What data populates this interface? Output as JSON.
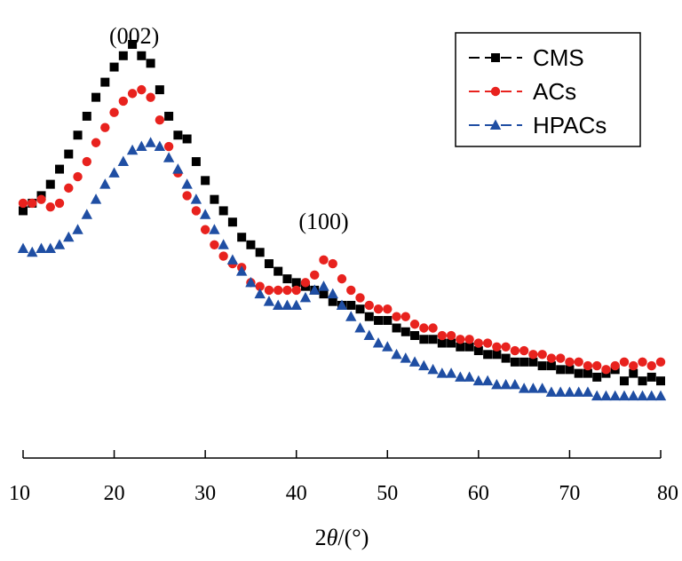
{
  "chart_data": {
    "type": "scatter",
    "xlabel_prefix": "2",
    "xlabel_theta": "θ",
    "xlabel_suffix": "/(°)",
    "xlim": [
      10,
      80
    ],
    "xticks": [
      "10",
      "20",
      "30",
      "40",
      "50",
      "60",
      "70",
      "80"
    ],
    "ylabel": "",
    "annotations": [
      {
        "text": "(002)",
        "x": 22.2,
        "yfrac": 0.96
      },
      {
        "text": "(100)",
        "x": 43.0,
        "yfrac": 0.47
      }
    ],
    "legend_position": "top-right",
    "series": [
      {
        "name": "CMS",
        "color": "#000000",
        "marker": "square",
        "x": [
          10,
          11,
          12,
          13,
          14,
          15,
          16,
          17,
          18,
          19,
          20,
          21,
          22,
          23,
          24,
          25,
          26,
          27,
          28,
          29,
          30,
          31,
          32,
          33,
          34,
          35,
          36,
          37,
          38,
          39,
          40,
          41,
          42,
          43,
          44,
          45,
          46,
          47,
          48,
          49,
          50,
          51,
          52,
          53,
          54,
          55,
          56,
          57,
          58,
          59,
          60,
          61,
          62,
          63,
          64,
          65,
          66,
          67,
          68,
          69,
          70,
          71,
          72,
          73,
          74,
          75,
          76,
          77,
          78,
          79,
          80
        ],
        "y": [
          0.56,
          0.58,
          0.6,
          0.63,
          0.67,
          0.71,
          0.76,
          0.81,
          0.86,
          0.9,
          0.94,
          0.97,
          1.0,
          0.97,
          0.95,
          0.88,
          0.81,
          0.76,
          0.75,
          0.69,
          0.64,
          0.59,
          0.56,
          0.53,
          0.49,
          0.47,
          0.45,
          0.42,
          0.4,
          0.38,
          0.37,
          0.36,
          0.35,
          0.34,
          0.32,
          0.31,
          0.31,
          0.3,
          0.28,
          0.27,
          0.27,
          0.25,
          0.24,
          0.23,
          0.22,
          0.22,
          0.21,
          0.21,
          0.2,
          0.2,
          0.19,
          0.18,
          0.18,
          0.17,
          0.16,
          0.16,
          0.16,
          0.15,
          0.15,
          0.14,
          0.14,
          0.13,
          0.13,
          0.12,
          0.13,
          0.14,
          0.11,
          0.13,
          0.11,
          0.12,
          0.11
        ]
      },
      {
        "name": "ACs",
        "color": "#e8221e",
        "marker": "circle",
        "x": [
          10,
          11,
          12,
          13,
          14,
          15,
          16,
          17,
          18,
          19,
          20,
          21,
          22,
          23,
          24,
          25,
          26,
          27,
          28,
          29,
          30,
          31,
          32,
          33,
          34,
          35,
          36,
          37,
          38,
          39,
          40,
          41,
          42,
          43,
          44,
          45,
          46,
          47,
          48,
          49,
          50,
          51,
          52,
          53,
          54,
          55,
          56,
          57,
          58,
          59,
          60,
          61,
          62,
          63,
          64,
          65,
          66,
          67,
          68,
          69,
          70,
          71,
          72,
          73,
          74,
          75,
          76,
          77,
          78,
          79,
          80
        ],
        "y": [
          0.58,
          0.58,
          0.59,
          0.57,
          0.58,
          0.62,
          0.65,
          0.69,
          0.74,
          0.78,
          0.82,
          0.85,
          0.87,
          0.88,
          0.86,
          0.8,
          0.73,
          0.66,
          0.6,
          0.56,
          0.51,
          0.47,
          0.44,
          0.42,
          0.41,
          0.37,
          0.36,
          0.35,
          0.35,
          0.35,
          0.35,
          0.37,
          0.39,
          0.43,
          0.42,
          0.38,
          0.35,
          0.33,
          0.31,
          0.3,
          0.3,
          0.28,
          0.28,
          0.26,
          0.25,
          0.25,
          0.23,
          0.23,
          0.22,
          0.22,
          0.21,
          0.21,
          0.2,
          0.2,
          0.19,
          0.19,
          0.18,
          0.18,
          0.17,
          0.17,
          0.16,
          0.16,
          0.15,
          0.15,
          0.14,
          0.15,
          0.16,
          0.15,
          0.16,
          0.15,
          0.16
        ]
      },
      {
        "name": "HPACs",
        "color": "#1f4ea3",
        "marker": "triangle",
        "x": [
          10,
          11,
          12,
          13,
          14,
          15,
          16,
          17,
          18,
          19,
          20,
          21,
          22,
          23,
          24,
          25,
          26,
          27,
          28,
          29,
          30,
          31,
          32,
          33,
          34,
          35,
          36,
          37,
          38,
          39,
          40,
          41,
          42,
          43,
          44,
          45,
          46,
          47,
          48,
          49,
          50,
          51,
          52,
          53,
          54,
          55,
          56,
          57,
          58,
          59,
          60,
          61,
          62,
          63,
          64,
          65,
          66,
          67,
          68,
          69,
          70,
          71,
          72,
          73,
          74,
          75,
          76,
          77,
          78,
          79,
          80
        ],
        "y": [
          0.46,
          0.45,
          0.46,
          0.46,
          0.47,
          0.49,
          0.51,
          0.55,
          0.59,
          0.63,
          0.66,
          0.69,
          0.72,
          0.73,
          0.74,
          0.73,
          0.7,
          0.67,
          0.63,
          0.59,
          0.55,
          0.51,
          0.47,
          0.43,
          0.4,
          0.37,
          0.34,
          0.32,
          0.31,
          0.31,
          0.31,
          0.33,
          0.35,
          0.36,
          0.34,
          0.31,
          0.28,
          0.25,
          0.23,
          0.21,
          0.2,
          0.18,
          0.17,
          0.16,
          0.15,
          0.14,
          0.13,
          0.13,
          0.12,
          0.12,
          0.11,
          0.11,
          0.1,
          0.1,
          0.1,
          0.09,
          0.09,
          0.09,
          0.08,
          0.08,
          0.08,
          0.08,
          0.08,
          0.07,
          0.07,
          0.07,
          0.07,
          0.07,
          0.07,
          0.07,
          0.07
        ]
      }
    ]
  }
}
